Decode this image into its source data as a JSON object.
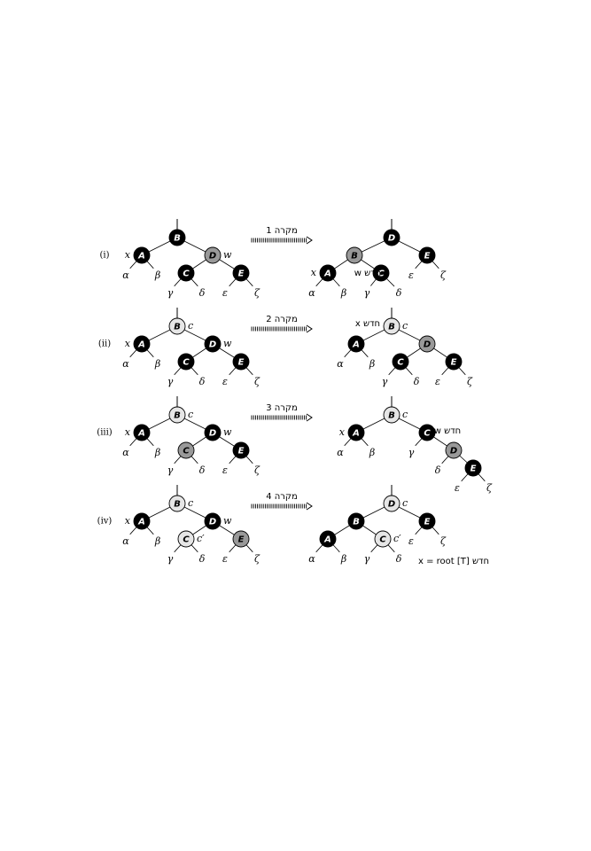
{
  "colors": {
    "black": "#000000",
    "gray": "#999999",
    "light": "#e6e6e6",
    "edge": "#000000"
  },
  "rows": [
    {
      "label": "(i)",
      "case_label": "מקרה 1",
      "left": {
        "nodes": [
          {
            "id": "B",
            "label": "B",
            "color": "black",
            "root": true
          },
          {
            "id": "A",
            "label": "A",
            "color": "black",
            "tag": "x",
            "tag_side": "left"
          },
          {
            "id": "D",
            "label": "D",
            "color": "gray",
            "tag": "w",
            "tag_side": "right"
          },
          {
            "id": "C",
            "label": "C",
            "color": "black"
          },
          {
            "id": "E",
            "label": "E",
            "color": "black"
          }
        ],
        "leaves": [
          "α",
          "β",
          "γ",
          "δ",
          "ε",
          "ζ"
        ]
      },
      "right": {
        "nodes": [
          {
            "id": "D",
            "label": "D",
            "color": "black",
            "root": true
          },
          {
            "id": "B",
            "label": "B",
            "color": "gray"
          },
          {
            "id": "E",
            "label": "E",
            "color": "black"
          },
          {
            "id": "A",
            "label": "A",
            "color": "black",
            "tag": "x",
            "tag_side": "left"
          },
          {
            "id": "C",
            "label": "C",
            "color": "black"
          }
        ],
        "leaves": [
          "α",
          "β",
          "γ",
          "δ",
          "ε",
          "ζ"
        ],
        "note": "w חדש"
      }
    },
    {
      "label": "(ii)",
      "case_label": "מקרה 2",
      "left": {
        "nodes": [
          {
            "id": "B",
            "label": "B",
            "color": "light",
            "root": true,
            "tag": "c",
            "tag_side": "right"
          },
          {
            "id": "A",
            "label": "A",
            "color": "black",
            "tag": "x",
            "tag_side": "left"
          },
          {
            "id": "D",
            "label": "D",
            "color": "black",
            "tag": "w",
            "tag_side": "right"
          },
          {
            "id": "C",
            "label": "C",
            "color": "black"
          },
          {
            "id": "E",
            "label": "E",
            "color": "black"
          }
        ],
        "leaves": [
          "α",
          "β",
          "γ",
          "δ",
          "ε",
          "ζ"
        ]
      },
      "right": {
        "nodes": [
          {
            "id": "B",
            "label": "B",
            "color": "light",
            "root": true,
            "tag": "c",
            "tag_side": "right"
          },
          {
            "id": "A",
            "label": "A",
            "color": "black"
          },
          {
            "id": "D",
            "label": "D",
            "color": "gray"
          },
          {
            "id": "C",
            "label": "C",
            "color": "black"
          },
          {
            "id": "E",
            "label": "E",
            "color": "black"
          }
        ],
        "leaves": [
          "α",
          "β",
          "γ",
          "δ",
          "ε",
          "ζ"
        ],
        "note": "x חדש"
      }
    },
    {
      "label": "(iii)",
      "case_label": "מקרה 3",
      "left": {
        "nodes": [
          {
            "id": "B",
            "label": "B",
            "color": "light",
            "root": true,
            "tag": "c",
            "tag_side": "right"
          },
          {
            "id": "A",
            "label": "A",
            "color": "black",
            "tag": "x",
            "tag_side": "left"
          },
          {
            "id": "D",
            "label": "D",
            "color": "black",
            "tag": "w",
            "tag_side": "right"
          },
          {
            "id": "C",
            "label": "C",
            "color": "gray"
          },
          {
            "id": "E",
            "label": "E",
            "color": "black"
          }
        ],
        "leaves": [
          "α",
          "β",
          "γ",
          "δ",
          "ε",
          "ζ"
        ]
      },
      "right": {
        "nodes": [
          {
            "id": "B",
            "label": "B",
            "color": "light",
            "root": true,
            "tag": "c",
            "tag_side": "right"
          },
          {
            "id": "A",
            "label": "A",
            "color": "black",
            "tag": "x",
            "tag_side": "left"
          },
          {
            "id": "C",
            "label": "C",
            "color": "black"
          },
          {
            "id": "D",
            "label": "D",
            "color": "gray"
          },
          {
            "id": "E",
            "label": "E",
            "color": "black"
          }
        ],
        "leaves": [
          "α",
          "β",
          "γ",
          "δ",
          "ε",
          "ζ"
        ],
        "note": "w חדש"
      }
    },
    {
      "label": "(iv)",
      "case_label": "מקרה 4",
      "left": {
        "nodes": [
          {
            "id": "B",
            "label": "B",
            "color": "light",
            "root": true,
            "tag": "c",
            "tag_side": "right"
          },
          {
            "id": "A",
            "label": "A",
            "color": "black",
            "tag": "x",
            "tag_side": "left"
          },
          {
            "id": "D",
            "label": "D",
            "color": "black",
            "tag": "w",
            "tag_side": "right"
          },
          {
            "id": "C",
            "label": "C",
            "color": "light",
            "tag": "c′",
            "tag_side": "right"
          },
          {
            "id": "E",
            "label": "E",
            "color": "gray"
          }
        ],
        "leaves": [
          "α",
          "β",
          "γ",
          "δ",
          "ε",
          "ζ"
        ]
      },
      "right": {
        "nodes": [
          {
            "id": "D",
            "label": "D",
            "color": "light",
            "root": true,
            "tag": "c",
            "tag_side": "right"
          },
          {
            "id": "B",
            "label": "B",
            "color": "black"
          },
          {
            "id": "E",
            "label": "E",
            "color": "black"
          },
          {
            "id": "A",
            "label": "A",
            "color": "black"
          },
          {
            "id": "C",
            "label": "C",
            "color": "light",
            "tag": "c′",
            "tag_side": "right"
          }
        ],
        "leaves": [
          "α",
          "β",
          "γ",
          "δ",
          "ε",
          "ζ"
        ],
        "note": "x = root [T] חדש"
      }
    }
  ]
}
